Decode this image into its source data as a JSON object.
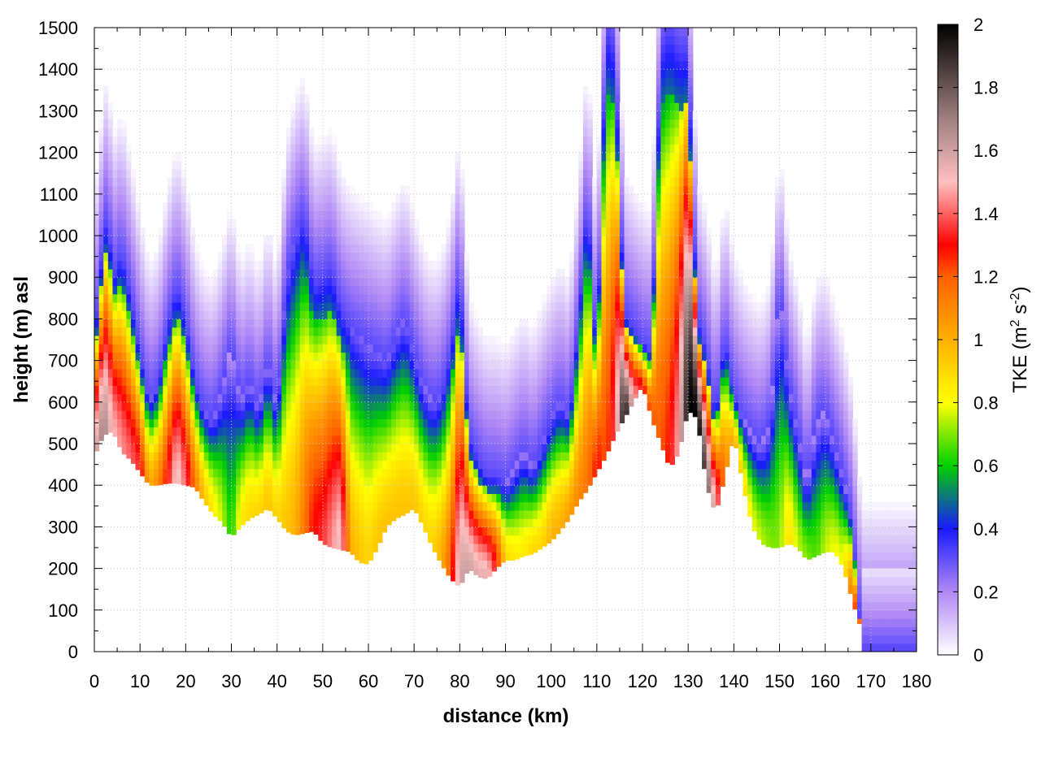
{
  "chart_data": {
    "type": "heatmap",
    "title": "",
    "xlabel": "distance (km)",
    "ylabel": "height (m) asl",
    "xlim": [
      0,
      180
    ],
    "ylim": [
      0,
      1500
    ],
    "x_ticks": [
      "0",
      "10",
      "20",
      "30",
      "40",
      "50",
      "60",
      "70",
      "80",
      "90",
      "100",
      "110",
      "120",
      "130",
      "140",
      "150",
      "160",
      "170",
      "180"
    ],
    "y_ticks": [
      "0",
      "100",
      "200",
      "300",
      "400",
      "500",
      "600",
      "700",
      "800",
      "900",
      "1000",
      "1100",
      "1200",
      "1300",
      "1400",
      "1500"
    ],
    "grid": true,
    "colorbar": {
      "label_main": "TKE (m",
      "label_sup1": "2",
      "label_mid": " s",
      "label_sup2": "-2",
      "label_end": ")",
      "range": [
        0,
        2
      ],
      "ticks": [
        "0",
        "0.2",
        "0.4",
        "0.6",
        "0.8",
        "1",
        "1.2",
        "1.4",
        "1.6",
        "1.8",
        "2"
      ],
      "stops": [
        {
          "v": 0.0,
          "c": "#ffffff"
        },
        {
          "v": 0.2,
          "c": "#b088f5"
        },
        {
          "v": 0.4,
          "c": "#1a1aff"
        },
        {
          "v": 0.6,
          "c": "#00d000"
        },
        {
          "v": 0.8,
          "c": "#ffff00"
        },
        {
          "v": 1.0,
          "c": "#ffb000"
        },
        {
          "v": 1.2,
          "c": "#ff6000"
        },
        {
          "v": 1.3,
          "c": "#ff0000"
        },
        {
          "v": 1.5,
          "c": "#ffc0c0"
        },
        {
          "v": 1.7,
          "c": "#a08080"
        },
        {
          "v": 2.0,
          "c": "#000000"
        }
      ]
    },
    "terrain_profile": {
      "x": [
        0,
        2,
        4,
        6,
        8,
        10,
        12,
        14,
        16,
        18,
        20,
        22,
        24,
        26,
        28,
        30,
        32,
        34,
        36,
        38,
        40,
        42,
        44,
        46,
        48,
        50,
        52,
        54,
        56,
        58,
        60,
        62,
        64,
        66,
        68,
        70,
        72,
        74,
        76,
        78,
        80,
        82,
        84,
        86,
        88,
        90,
        92,
        94,
        96,
        98,
        100,
        102,
        104,
        106,
        108,
        110,
        112,
        114,
        116,
        118,
        120,
        122,
        124,
        126,
        128,
        130,
        132,
        134,
        136,
        138,
        140,
        142,
        144,
        146,
        148,
        150,
        152,
        154,
        156,
        158,
        160,
        162,
        164,
        166,
        168,
        170,
        175,
        180
      ],
      "height": [
        470,
        520,
        530,
        480,
        460,
        430,
        400,
        400,
        405,
        405,
        400,
        395,
        360,
        330,
        310,
        275,
        300,
        320,
        330,
        345,
        320,
        290,
        280,
        285,
        290,
        260,
        250,
        245,
        240,
        215,
        210,
        250,
        300,
        320,
        330,
        345,
        300,
        250,
        210,
        175,
        155,
        200,
        180,
        175,
        200,
        220,
        220,
        230,
        235,
        250,
        265,
        290,
        320,
        360,
        390,
        430,
        470,
        520,
        560,
        600,
        640,
        560,
        500,
        440,
        480,
        580,
        560,
        400,
        330,
        420,
        520,
        400,
        300,
        260,
        250,
        250,
        260,
        250,
        220,
        230,
        240,
        240,
        200,
        120,
        50,
        0,
        0,
        0
      ]
    },
    "mixing_top": {
      "x": [
        0,
        2,
        3,
        4,
        6,
        8,
        10,
        12,
        14,
        16,
        18,
        20,
        22,
        24,
        26,
        28,
        30,
        32,
        34,
        36,
        38,
        40,
        42,
        44,
        46,
        48,
        50,
        52,
        54,
        56,
        58,
        60,
        62,
        64,
        66,
        68,
        70,
        72,
        74,
        76,
        78,
        80,
        82,
        84,
        86,
        88,
        90,
        92,
        94,
        96,
        98,
        100,
        102,
        104,
        106,
        108,
        110,
        112,
        114,
        116,
        118,
        120,
        122,
        124,
        126,
        128,
        130,
        132,
        134,
        136,
        138,
        140,
        142,
        144,
        146,
        148,
        150,
        152,
        154,
        156,
        158,
        160,
        162,
        164,
        166,
        168
      ],
      "height": [
        750,
        1000,
        1060,
        900,
        960,
        850,
        720,
        600,
        640,
        780,
        880,
        800,
        650,
        580,
        560,
        640,
        740,
        600,
        650,
        580,
        700,
        580,
        900,
        1000,
        1050,
        880,
        900,
        920,
        820,
        780,
        760,
        740,
        720,
        700,
        760,
        800,
        720,
        640,
        600,
        620,
        720,
        920,
        520,
        460,
        420,
        420,
        400,
        440,
        480,
        440,
        500,
        560,
        600,
        560,
        800,
        1100,
        700,
        1500,
        1450,
        820,
        780,
        740,
        720,
        1450,
        1500,
        1450,
        1450,
        800,
        720,
        560,
        760,
        620,
        560,
        520,
        500,
        560,
        880,
        640,
        540,
        400,
        560,
        580,
        500,
        420,
        300,
        20
      ]
    },
    "peak_tke": {
      "x": [
        0,
        2,
        4,
        6,
        8,
        10,
        12,
        14,
        16,
        18,
        20,
        22,
        24,
        26,
        28,
        30,
        32,
        34,
        36,
        38,
        40,
        42,
        44,
        46,
        48,
        50,
        52,
        54,
        56,
        58,
        60,
        62,
        64,
        66,
        68,
        70,
        72,
        74,
        76,
        78,
        80,
        82,
        84,
        86,
        88,
        90,
        92,
        94,
        96,
        98,
        100,
        102,
        104,
        106,
        108,
        110,
        112,
        114,
        116,
        118,
        120,
        122,
        124,
        126,
        128,
        130,
        132,
        134,
        136,
        138,
        140,
        142,
        144,
        146,
        148,
        150,
        152,
        154,
        156,
        158,
        160,
        162,
        164,
        166,
        168
      ],
      "tke": [
        1.55,
        1.7,
        1.5,
        1.45,
        1.4,
        1.35,
        1.0,
        1.1,
        1.3,
        1.55,
        1.4,
        1.15,
        0.95,
        0.85,
        0.75,
        0.6,
        0.85,
        0.9,
        0.9,
        0.95,
        0.9,
        0.95,
        1.0,
        1.15,
        1.3,
        1.35,
        1.45,
        1.55,
        1.0,
        0.95,
        0.9,
        0.95,
        0.95,
        0.95,
        0.95,
        0.95,
        0.9,
        0.9,
        1.0,
        1.2,
        1.6,
        1.6,
        1.55,
        1.55,
        1.3,
        0.9,
        0.85,
        0.85,
        0.9,
        0.9,
        1.0,
        1.0,
        1.05,
        1.1,
        1.15,
        1.3,
        1.2,
        1.4,
        2.0,
        1.5,
        1.3,
        1.2,
        1.2,
        1.3,
        1.5,
        2.0,
        2.0,
        1.8,
        1.5,
        1.1,
        1.0,
        0.9,
        0.8,
        0.75,
        0.7,
        0.7,
        0.9,
        0.75,
        0.7,
        0.65,
        0.75,
        0.8,
        0.8,
        1.2,
        1.3
      ]
    }
  }
}
